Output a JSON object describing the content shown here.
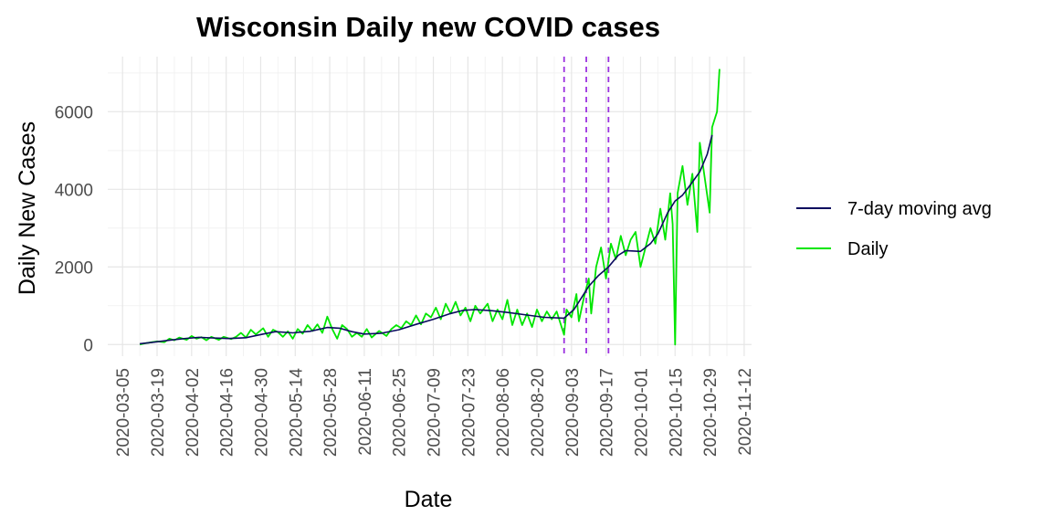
{
  "chart_data": {
    "type": "line",
    "title": "Wisconsin Daily new COVID cases",
    "xlabel": "Date",
    "ylabel": "Daily New Cases",
    "x_axis": {
      "type": "date",
      "ticks": [
        "2020-03-05",
        "2020-03-19",
        "2020-04-02",
        "2020-04-16",
        "2020-04-30",
        "2020-05-14",
        "2020-05-28",
        "2020-06-11",
        "2020-06-25",
        "2020-07-09",
        "2020-07-23",
        "2020-08-06",
        "2020-08-20",
        "2020-09-03",
        "2020-09-17",
        "2020-10-01",
        "2020-10-15",
        "2020-10-29",
        "2020-11-12"
      ]
    },
    "y_axis": {
      "ticks": [
        0,
        2000,
        4000,
        6000
      ],
      "tick_labels": [
        "0",
        "2000",
        "4000",
        "6000"
      ]
    },
    "grid": true,
    "legend_placement": "right",
    "vertical_lines": {
      "style": "dashed",
      "color": "#9b30e0",
      "dates": [
        "2020-08-31",
        "2020-09-09",
        "2020-09-18"
      ]
    },
    "series": [
      {
        "name": "7-day moving avg",
        "color": "#0a0a5e",
        "points": [
          [
            "2020-03-12",
            20
          ],
          [
            "2020-03-17",
            55
          ],
          [
            "2020-03-24",
            110
          ],
          [
            "2020-03-31",
            160
          ],
          [
            "2020-04-05",
            185
          ],
          [
            "2020-04-10",
            170
          ],
          [
            "2020-04-17",
            155
          ],
          [
            "2020-04-24",
            175
          ],
          [
            "2020-05-01",
            270
          ],
          [
            "2020-05-06",
            330
          ],
          [
            "2020-05-13",
            300
          ],
          [
            "2020-05-20",
            340
          ],
          [
            "2020-05-27",
            440
          ],
          [
            "2020-06-01",
            420
          ],
          [
            "2020-06-06",
            330
          ],
          [
            "2020-06-11",
            270
          ],
          [
            "2020-06-18",
            290
          ],
          [
            "2020-06-25",
            380
          ],
          [
            "2020-07-02",
            520
          ],
          [
            "2020-07-09",
            650
          ],
          [
            "2020-07-16",
            800
          ],
          [
            "2020-07-21",
            880
          ],
          [
            "2020-07-26",
            900
          ],
          [
            "2020-08-02",
            870
          ],
          [
            "2020-08-09",
            820
          ],
          [
            "2020-08-16",
            760
          ],
          [
            "2020-08-23",
            700
          ],
          [
            "2020-08-31",
            680
          ],
          [
            "2020-09-04",
            900
          ],
          [
            "2020-09-07",
            1200
          ],
          [
            "2020-09-10",
            1500
          ],
          [
            "2020-09-14",
            1780
          ],
          [
            "2020-09-18",
            2000
          ],
          [
            "2020-09-22",
            2300
          ],
          [
            "2020-09-25",
            2420
          ],
          [
            "2020-10-01",
            2400
          ],
          [
            "2020-10-05",
            2600
          ],
          [
            "2020-10-08",
            2850
          ],
          [
            "2020-10-12",
            3400
          ],
          [
            "2020-10-15",
            3700
          ],
          [
            "2020-10-18",
            3850
          ],
          [
            "2020-10-21",
            4100
          ],
          [
            "2020-10-25",
            4450
          ],
          [
            "2020-10-28",
            4900
          ],
          [
            "2020-10-30",
            5400
          ]
        ]
      },
      {
        "name": "Daily",
        "color": "#00e600",
        "points": [
          [
            "2020-03-12",
            0
          ],
          [
            "2020-03-14",
            30
          ],
          [
            "2020-03-17",
            60
          ],
          [
            "2020-03-19",
            80
          ],
          [
            "2020-03-22",
            60
          ],
          [
            "2020-03-24",
            150
          ],
          [
            "2020-03-26",
            110
          ],
          [
            "2020-03-28",
            180
          ],
          [
            "2020-03-31",
            120
          ],
          [
            "2020-04-02",
            220
          ],
          [
            "2020-04-04",
            150
          ],
          [
            "2020-04-06",
            190
          ],
          [
            "2020-04-08",
            110
          ],
          [
            "2020-04-10",
            200
          ],
          [
            "2020-04-13",
            120
          ],
          [
            "2020-04-15",
            200
          ],
          [
            "2020-04-18",
            140
          ],
          [
            "2020-04-20",
            200
          ],
          [
            "2020-04-22",
            300
          ],
          [
            "2020-04-24",
            180
          ],
          [
            "2020-04-26",
            380
          ],
          [
            "2020-04-28",
            260
          ],
          [
            "2020-05-01",
            420
          ],
          [
            "2020-05-03",
            200
          ],
          [
            "2020-05-05",
            380
          ],
          [
            "2020-05-07",
            320
          ],
          [
            "2020-05-09",
            200
          ],
          [
            "2020-05-11",
            340
          ],
          [
            "2020-05-13",
            150
          ],
          [
            "2020-05-15",
            400
          ],
          [
            "2020-05-17",
            280
          ],
          [
            "2020-05-19",
            500
          ],
          [
            "2020-05-21",
            350
          ],
          [
            "2020-05-23",
            520
          ],
          [
            "2020-05-25",
            300
          ],
          [
            "2020-05-27",
            720
          ],
          [
            "2020-05-29",
            400
          ],
          [
            "2020-05-31",
            150
          ],
          [
            "2020-06-02",
            500
          ],
          [
            "2020-06-04",
            400
          ],
          [
            "2020-06-06",
            200
          ],
          [
            "2020-06-08",
            300
          ],
          [
            "2020-06-10",
            200
          ],
          [
            "2020-06-12",
            400
          ],
          [
            "2020-06-14",
            180
          ],
          [
            "2020-06-17",
            350
          ],
          [
            "2020-06-20",
            220
          ],
          [
            "2020-06-22",
            400
          ],
          [
            "2020-06-24",
            500
          ],
          [
            "2020-06-26",
            420
          ],
          [
            "2020-06-28",
            600
          ],
          [
            "2020-06-30",
            500
          ],
          [
            "2020-07-02",
            750
          ],
          [
            "2020-07-04",
            520
          ],
          [
            "2020-07-06",
            800
          ],
          [
            "2020-07-08",
            700
          ],
          [
            "2020-07-10",
            950
          ],
          [
            "2020-07-12",
            650
          ],
          [
            "2020-07-14",
            1050
          ],
          [
            "2020-07-16",
            800
          ],
          [
            "2020-07-18",
            1100
          ],
          [
            "2020-07-20",
            750
          ],
          [
            "2020-07-22",
            950
          ],
          [
            "2020-07-24",
            600
          ],
          [
            "2020-07-26",
            1000
          ],
          [
            "2020-07-28",
            800
          ],
          [
            "2020-07-31",
            1050
          ],
          [
            "2020-08-02",
            600
          ],
          [
            "2020-08-04",
            900
          ],
          [
            "2020-08-06",
            650
          ],
          [
            "2020-08-08",
            1150
          ],
          [
            "2020-08-10",
            500
          ],
          [
            "2020-08-12",
            900
          ],
          [
            "2020-08-14",
            500
          ],
          [
            "2020-08-16",
            800
          ],
          [
            "2020-08-18",
            450
          ],
          [
            "2020-08-20",
            900
          ],
          [
            "2020-08-22",
            600
          ],
          [
            "2020-08-24",
            850
          ],
          [
            "2020-08-26",
            650
          ],
          [
            "2020-08-28",
            850
          ],
          [
            "2020-08-31",
            250
          ],
          [
            "2020-09-01",
            900
          ],
          [
            "2020-09-03",
            700
          ],
          [
            "2020-09-05",
            1300
          ],
          [
            "2020-09-06",
            600
          ],
          [
            "2020-09-08",
            1200
          ],
          [
            "2020-09-10",
            1700
          ],
          [
            "2020-09-11",
            800
          ],
          [
            "2020-09-13",
            2000
          ],
          [
            "2020-09-15",
            2500
          ],
          [
            "2020-09-17",
            1700
          ],
          [
            "2020-09-19",
            2600
          ],
          [
            "2020-09-21",
            2200
          ],
          [
            "2020-09-23",
            2800
          ],
          [
            "2020-09-25",
            2300
          ],
          [
            "2020-09-27",
            2700
          ],
          [
            "2020-09-29",
            2900
          ],
          [
            "2020-10-01",
            2000
          ],
          [
            "2020-10-03",
            2500
          ],
          [
            "2020-10-05",
            3000
          ],
          [
            "2020-10-07",
            2600
          ],
          [
            "2020-10-09",
            3500
          ],
          [
            "2020-10-11",
            2700
          ],
          [
            "2020-10-13",
            3900
          ],
          [
            "2020-10-14",
            3100
          ],
          [
            "2020-10-15",
            0
          ],
          [
            "2020-10-16",
            3900
          ],
          [
            "2020-10-18",
            4600
          ],
          [
            "2020-10-20",
            3600
          ],
          [
            "2020-10-22",
            4400
          ],
          [
            "2020-10-24",
            2900
          ],
          [
            "2020-10-25",
            5200
          ],
          [
            "2020-10-27",
            4300
          ],
          [
            "2020-10-29",
            3400
          ],
          [
            "2020-10-30",
            5600
          ],
          [
            "2020-11-01",
            6000
          ],
          [
            "2020-11-02",
            7100
          ]
        ]
      }
    ]
  }
}
